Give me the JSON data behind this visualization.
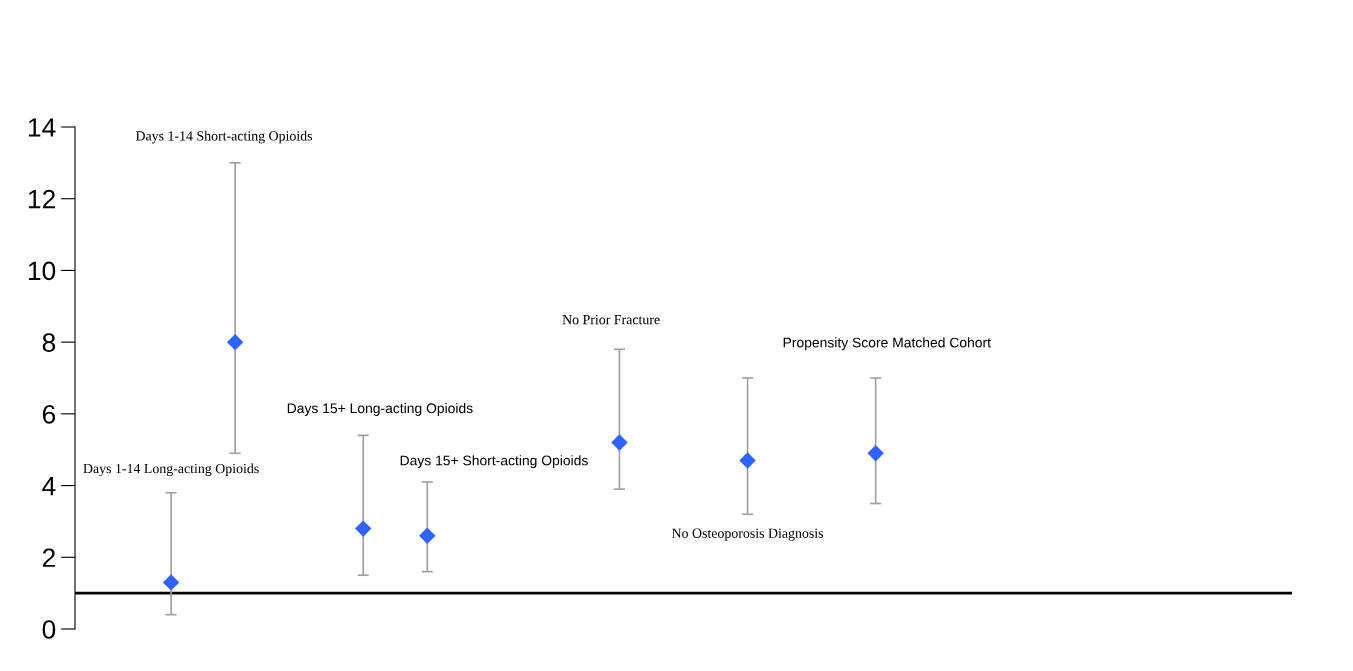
{
  "chart_data": {
    "type": "scatter",
    "categories": [
      null,
      null,
      null,
      null,
      null,
      null,
      null,
      null,
      null,
      null,
      null,
      null,
      null,
      null,
      null,
      null,
      null,
      null,
      null
    ],
    "values": [
      null,
      1.3,
      8.0,
      null,
      2.8,
      2.6,
      null,
      null,
      5.2,
      null,
      4.7,
      null,
      4.9,
      null,
      null,
      null,
      null,
      null,
      null
    ],
    "errors": [
      null,
      [
        0.4,
        3.8
      ],
      [
        4.9,
        13.0
      ],
      null,
      [
        1.5,
        5.4
      ],
      [
        1.6,
        4.1
      ],
      null,
      null,
      [
        3.9,
        7.8
      ],
      null,
      [
        3.2,
        7.0
      ],
      null,
      [
        3.5,
        7.0
      ],
      null,
      null,
      null,
      null,
      null,
      null
    ],
    "color": "#2f62ff",
    "marker": "diamond",
    "ylim": [
      0,
      14
    ],
    "yticks": [
      0,
      2,
      4,
      6,
      8,
      10,
      12,
      14
    ],
    "tick_labels": "y",
    "grid": false,
    "ref_lines": [
      {
        "axis": "y",
        "value": 1,
        "color": "#000000",
        "line_style": "solid"
      }
    ],
    "annotations": [
      "Days 1-14 Long-acting Opioids",
      "Days 1-14 Short-acting Opioids",
      "Days 15+ Long-acting Opioids",
      "Days 15+ Short-acting Opioids",
      "No Prior Fracture",
      "No Osteoporosis Diagnosis",
      "Propensity Score Matched Cohort"
    ]
  }
}
